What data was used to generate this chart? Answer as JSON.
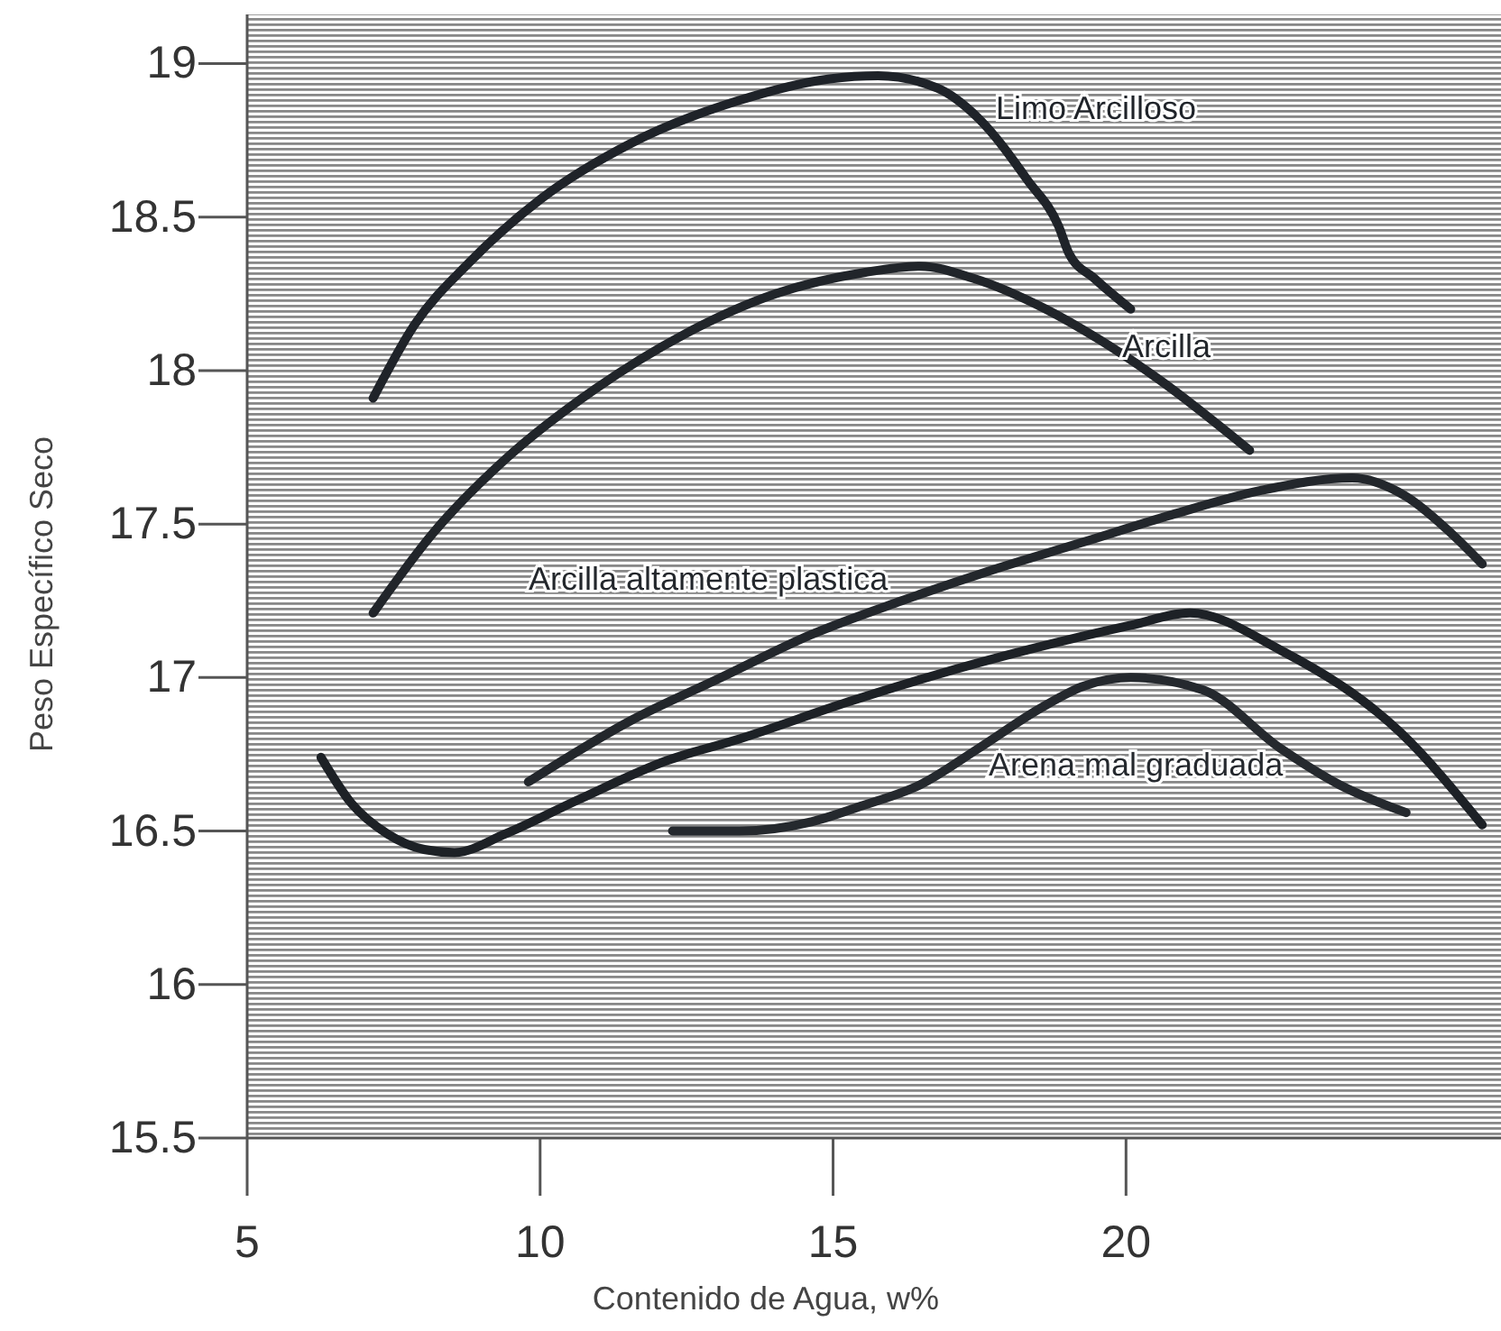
{
  "chart_data": {
    "type": "line",
    "xlabel": "Contenido de Agua, w%",
    "ylabel": "Peso Específico Seco",
    "xlim": [
      5,
      26.4
    ],
    "ylim": [
      15.5,
      19.16
    ],
    "xticks": [
      5,
      10,
      15,
      20
    ],
    "yticks": [
      15.5,
      16,
      16.5,
      17,
      17.5,
      18,
      18.5,
      19
    ],
    "series": [
      {
        "name": "Limo Arcilloso",
        "color": "#1f2329",
        "x": [
          7.15,
          7.86,
          8.78,
          10.02,
          11.55,
          13.4,
          14.94,
          15.77,
          16.78,
          17.49,
          18.32,
          18.85,
          19.03,
          19.46,
          20.08
        ],
        "values": [
          17.91,
          18.15,
          18.35,
          18.56,
          18.74,
          18.88,
          18.95,
          18.96,
          18.92,
          18.82,
          18.62,
          18.47,
          18.38,
          18.3,
          18.2
        ]
      },
      {
        "name": "Arcilla",
        "color": "#21252a",
        "x": [
          7.15,
          8.17,
          9.4,
          10.94,
          12.48,
          14.02,
          15.55,
          16.48,
          17.4,
          18.63,
          19.55,
          20.57,
          22.11
        ],
        "values": [
          17.21,
          17.47,
          17.71,
          17.94,
          18.12,
          18.25,
          18.32,
          18.34,
          18.3,
          18.2,
          18.1,
          17.97,
          17.74
        ]
      },
      {
        "name": "Arcilla altamente plastica",
        "color": "#23272c",
        "x": [
          9.8,
          11.55,
          13.09,
          14.63,
          16.17,
          17.71,
          19.25,
          20.78,
          22.32,
          23.86,
          24.78,
          25.55,
          26.08
        ],
        "values": [
          16.66,
          16.86,
          17.0,
          17.14,
          17.25,
          17.35,
          17.44,
          17.53,
          17.61,
          17.65,
          17.59,
          17.47,
          17.37
        ]
      },
      {
        "color": "#1d2126",
        "x": [
          6.26,
          6.78,
          7.4,
          8.02,
          8.54,
          9.4,
          10.63,
          12.17,
          13.4,
          15.25,
          16.78,
          18.32,
          20.08,
          21.09,
          22.63,
          24.69,
          26.08
        ],
        "values": [
          16.74,
          16.59,
          16.49,
          16.44,
          16.43,
          16.49,
          16.6,
          16.73,
          16.8,
          16.92,
          17.01,
          17.09,
          17.17,
          17.21,
          17.09,
          16.82,
          16.52
        ]
      },
      {
        "name": "Arena mal graduada",
        "color": "#25292e",
        "x": [
          12.26,
          13.4,
          14.63,
          15.46,
          16.48,
          17.49,
          18.54,
          19.25,
          20.08,
          21.31,
          22.63,
          23.65,
          24.78
        ],
        "values": [
          16.5,
          16.5,
          16.53,
          16.58,
          16.65,
          16.77,
          16.9,
          16.97,
          17.0,
          16.96,
          16.77,
          16.65,
          16.56
        ]
      }
    ]
  }
}
